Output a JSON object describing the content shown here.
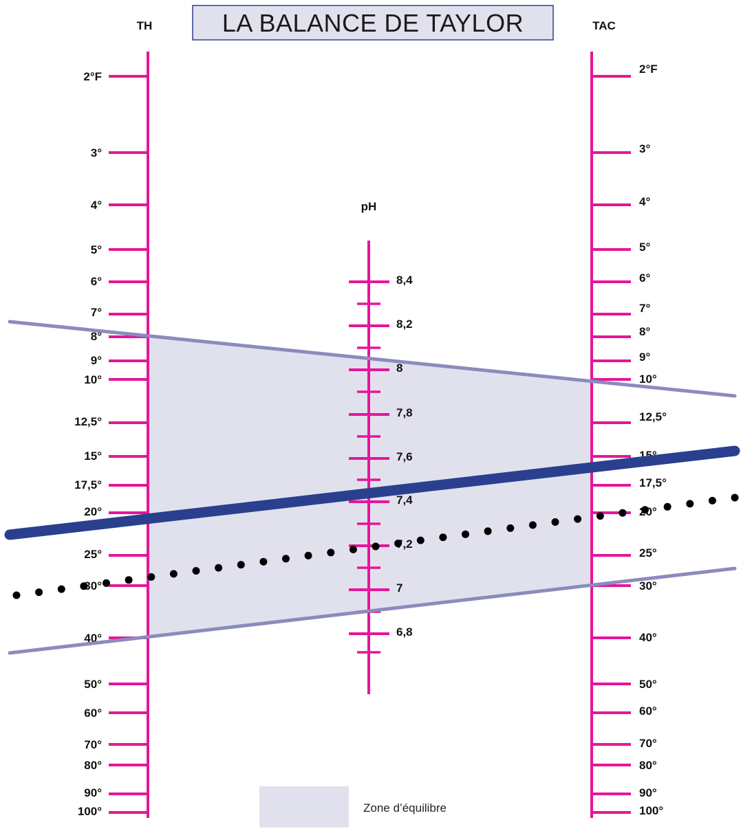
{
  "title": "LA BALANCE DE TAYLOR",
  "colors": {
    "scale": "#e6159a",
    "zone_fill": "#e1e1ee",
    "zone_border": "#8b8bbd",
    "title_box_fill": "#e1e1ee",
    "title_box_border": "#2e3f8a",
    "main_line": "#2a3f8e",
    "dotted_line": "#000000"
  },
  "axes": {
    "th": {
      "title": "TH",
      "ticks": [
        "2°F",
        "3°",
        "4°",
        "5°",
        "6°",
        "7°",
        "8°",
        "9°",
        "10°",
        "12,5°",
        "15°",
        "17,5°",
        "20°",
        "25°",
        "30°",
        "40°",
        "50°",
        "60°",
        "70°",
        "80°",
        "90°",
        "100°"
      ]
    },
    "ph": {
      "title": "pH",
      "ticks": [
        "8,4",
        "8,2",
        "8",
        "7,8",
        "7,6",
        "7,4",
        "7,2",
        "7",
        "6,8"
      ]
    },
    "tac": {
      "title": "TAC",
      "ticks": [
        "2°F",
        "3°",
        "4°",
        "5°",
        "6°",
        "7°",
        "8°",
        "9°",
        "10°",
        "12,5°",
        "15°",
        "17,5°",
        "20°",
        "25°",
        "30°",
        "40°",
        "50°",
        "60°",
        "70°",
        "80°",
        "90°",
        "100°"
      ]
    }
  },
  "lines": {
    "upper_limit": {
      "TH": "8°",
      "pH": "8",
      "TAC": "10°"
    },
    "lower_limit": {
      "TH": "40°",
      "pH": "6,8",
      "TAC": "30°"
    },
    "example": {
      "TH": "20°",
      "pH": "7,4",
      "TAC": "15°"
    },
    "dotted_example": {
      "TH": "30°",
      "pH": "7,2",
      "TAC": "20°"
    }
  },
  "legend": {
    "label": "Zone d’équilibre"
  }
}
